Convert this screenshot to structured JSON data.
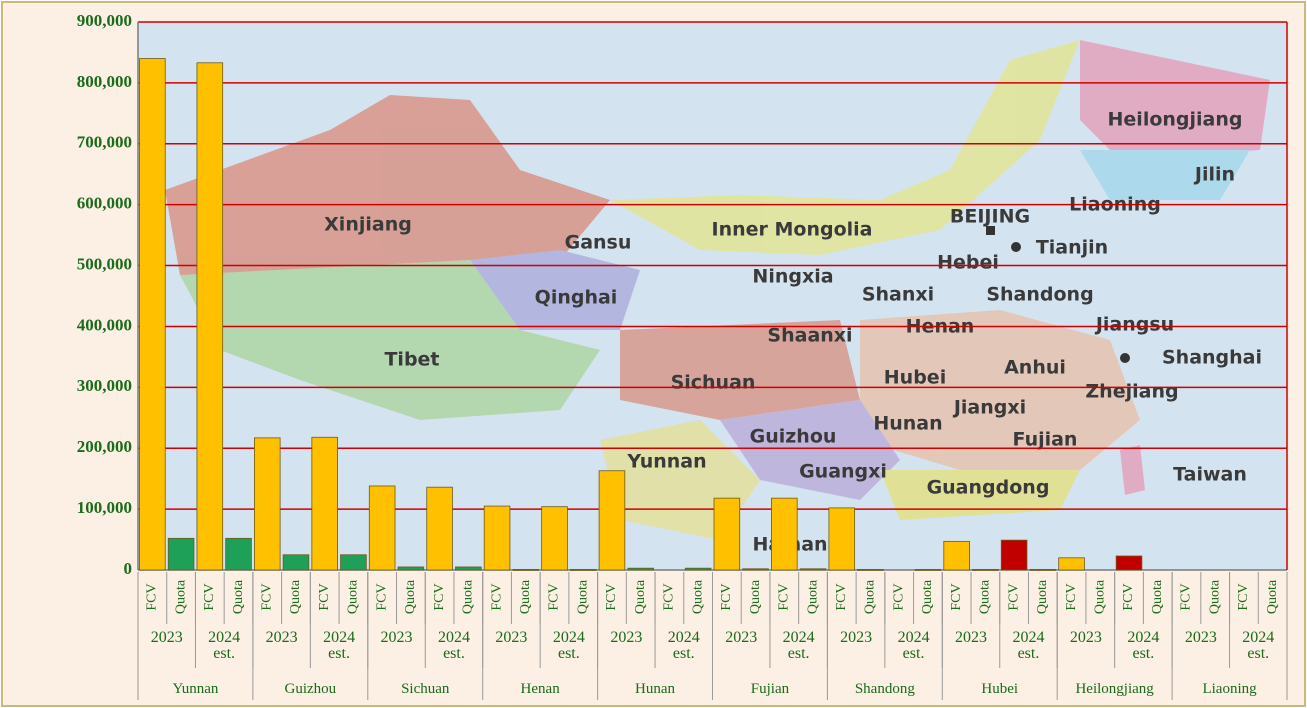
{
  "chart_data": {
    "type": "bar",
    "groups": [
      "Yunnan",
      "Guizhou",
      "Sichuan",
      "Henan",
      "Hunan",
      "Fujian",
      "Shandong",
      "Hubei",
      "Heilongjiang",
      "Liaoning"
    ],
    "categories": [
      "2023",
      "2024 est.",
      "2023",
      "2024 est.",
      "2023",
      "2024 est.",
      "2023",
      "2024 est.",
      "2023",
      "2024 est.",
      "2023",
      "2024 est.",
      "2023",
      "2024 est.",
      "2023",
      "2024 est.",
      "2023",
      "2024 est.",
      "2023",
      "2024 est."
    ],
    "series": [
      {
        "name": "FCV",
        "color": "#ffc000",
        "colors": [
          "#ffc000",
          "#ffc000",
          "#ffc000",
          "#ffc000",
          "#ffc000",
          "#ffc000",
          "#ffc000",
          "#ffc000",
          "#ffc000",
          "#ffc000",
          "#ffc000",
          "#ffc000",
          "#ffc000",
          "#ffc000",
          "#ffc000",
          "#c00000",
          "#ffc000",
          "#c00000",
          "#ffc000",
          "#ffc000"
        ],
        "values": [
          840000,
          833000,
          217000,
          218000,
          138000,
          136000,
          105000,
          104000,
          163000,
          null,
          118000,
          118000,
          102000,
          null,
          47000,
          49000,
          20000,
          23000,
          null,
          null
        ]
      },
      {
        "name": "Quota",
        "color": "#1fa058",
        "values": [
          52000,
          52000,
          25000,
          25000,
          5000,
          5000,
          1000,
          1000,
          3000,
          3000,
          2000,
          2000,
          1000,
          1000,
          1000,
          1000,
          null,
          null,
          null,
          null
        ]
      }
    ],
    "ylim": [
      0,
      900000
    ],
    "yticks": [
      {
        "value": 0,
        "label": "0"
      },
      {
        "value": 100000,
        "label": "100,000"
      },
      {
        "value": 200000,
        "label": "200,000"
      },
      {
        "value": 300000,
        "label": "300,000"
      },
      {
        "value": 400000,
        "label": "400,000"
      },
      {
        "value": 500000,
        "label": "500,000"
      },
      {
        "value": 600000,
        "label": "600,000"
      },
      {
        "value": 700000,
        "label": "700,000"
      },
      {
        "value": 800000,
        "label": "800,000"
      },
      {
        "value": 900000,
        "label": "900,000"
      }
    ],
    "grid": true,
    "map_labels": [
      "Heilongjiang",
      "Jilin",
      "Liaoning",
      "BEIJING",
      "Tianjin",
      "Hebei",
      "Shandong",
      "Shanxi",
      "Jiangsu",
      "Shanghai",
      "Henan",
      "Anhui",
      "Shaanxi",
      "Ningxia",
      "Inner Mongolia",
      "Gansu",
      "Xinjiang",
      "Qinghai",
      "Tibet",
      "Sichuan",
      "Hubei",
      "Zhejiang",
      "Jiangxi",
      "Hunan",
      "Fujian",
      "Guizhou",
      "Yunnan",
      "Guangxi",
      "Taiwan",
      "Guangdong",
      "Hainan"
    ]
  }
}
